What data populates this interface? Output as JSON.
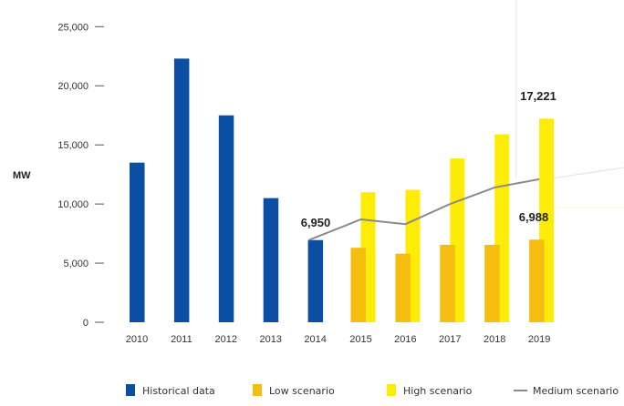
{
  "chart_data": {
    "type": "bar",
    "title": "",
    "xlabel": "",
    "ylabel": "MW",
    "ylim": [
      0,
      25000
    ],
    "yticks": [
      0,
      5000,
      10000,
      15000,
      20000,
      25000
    ],
    "ytick_labels": [
      "0",
      "5,000",
      "10,000",
      "15,000",
      "20,000",
      "25,000"
    ],
    "grid": false,
    "legend_position": "bottom",
    "categories": [
      "2010",
      "2011",
      "2012",
      "2013",
      "2014",
      "2015",
      "2016",
      "2017",
      "2018",
      "2019"
    ],
    "series": [
      {
        "name": "Historical data",
        "kind": "bar",
        "color": "#0a4fa3",
        "values": [
          13500,
          22300,
          17500,
          10500,
          6950,
          null,
          null,
          null,
          null,
          null
        ]
      },
      {
        "name": "Low scenario",
        "kind": "bar",
        "color": "#f5bd10",
        "values": [
          null,
          null,
          null,
          null,
          null,
          6300,
          5800,
          6550,
          6550,
          6988
        ]
      },
      {
        "name": "High scenario",
        "kind": "bar",
        "color": "#fdec07",
        "values": [
          null,
          null,
          null,
          null,
          null,
          11000,
          11200,
          13850,
          15900,
          17221
        ]
      },
      {
        "name": "Medium scenario",
        "kind": "line",
        "color": "#8a8a8a",
        "values": [
          null,
          null,
          null,
          null,
          6950,
          8700,
          8300,
          10000,
          11400,
          12100
        ]
      }
    ],
    "annotations": [
      {
        "text": "6,950",
        "category": "2014"
      },
      {
        "text": "17,221",
        "category": "2019"
      },
      {
        "text": "6,988",
        "category": "2019"
      }
    ]
  }
}
